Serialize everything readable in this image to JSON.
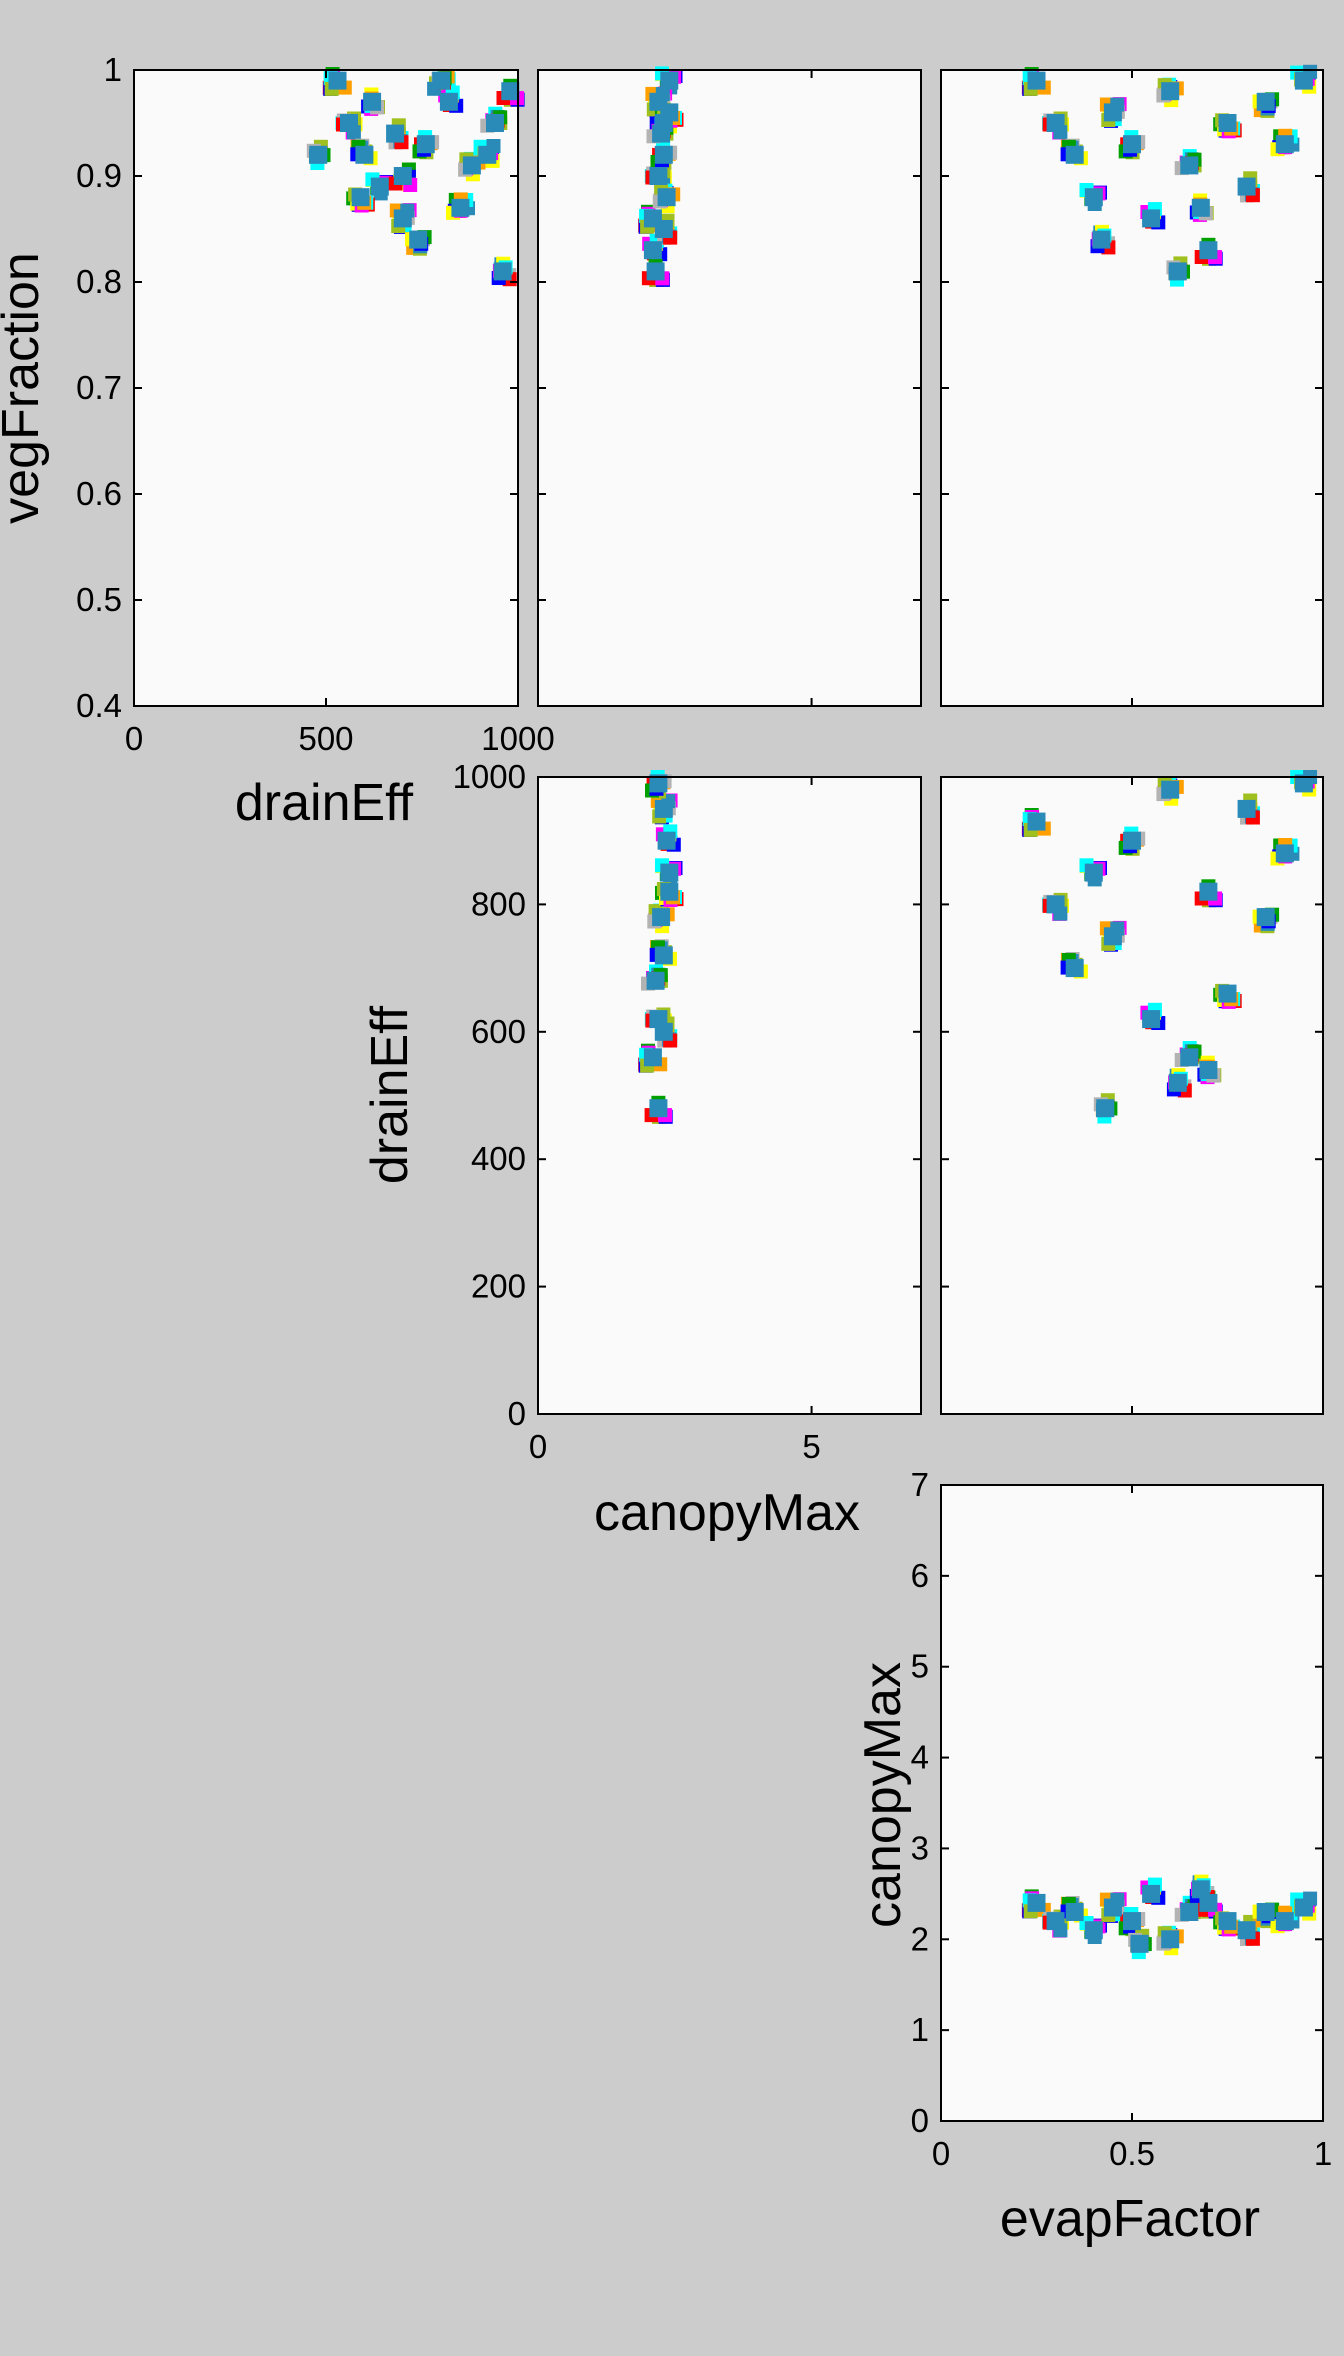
{
  "figure": {
    "background": "#cccccc",
    "axes_background": "#fafafa",
    "marker": "square",
    "palette": [
      "#ff0000",
      "#00a000",
      "#0000ff",
      "#ffff00",
      "#ff00ff",
      "#00ffff",
      "#ffa000",
      "#a0c020",
      "#b3b3b3",
      "#2a8ab8"
    ]
  },
  "chart_data": [
    {
      "id": "drainEff-vs-vegFraction",
      "type": "scatter",
      "xlabel": "drainEff",
      "ylabel": "vegFraction",
      "xlim": [
        0,
        1000
      ],
      "ylim": [
        0.4,
        1
      ],
      "xticks": [
        "0",
        "500",
        "1000"
      ],
      "yticks": [
        "0.4",
        "0.5",
        "0.6",
        "0.7",
        "0.8",
        "0.9",
        "1"
      ],
      "grid": false,
      "points": [
        [
          530,
          0.99
        ],
        [
          560,
          0.95
        ],
        [
          600,
          0.92
        ],
        [
          640,
          0.89
        ],
        [
          700,
          0.86
        ],
        [
          760,
          0.93
        ],
        [
          820,
          0.97
        ],
        [
          880,
          0.91
        ],
        [
          940,
          0.95
        ],
        [
          980,
          0.98
        ],
        [
          590,
          0.88
        ],
        [
          680,
          0.94
        ],
        [
          740,
          0.84
        ],
        [
          850,
          0.87
        ],
        [
          920,
          0.92
        ],
        [
          480,
          0.92
        ],
        [
          960,
          0.81
        ],
        [
          620,
          0.97
        ],
        [
          800,
          0.99
        ],
        [
          700,
          0.9
        ]
      ]
    },
    {
      "id": "canopyMax-vs-vegFraction",
      "type": "scatter",
      "xlabel": "",
      "ylabel": "",
      "xlim": [
        0,
        7
      ],
      "ylim": [
        0.4,
        1
      ],
      "grid": false,
      "points": [
        [
          2.1,
          0.86
        ],
        [
          2.2,
          0.9
        ],
        [
          2.3,
          0.95
        ],
        [
          2.4,
          0.99
        ],
        [
          2.2,
          0.97
        ],
        [
          2.3,
          0.92
        ],
        [
          2.1,
          0.83
        ],
        [
          2.35,
          0.88
        ],
        [
          2.25,
          0.94
        ],
        [
          2.15,
          0.81
        ],
        [
          2.4,
          0.96
        ],
        [
          2.3,
          0.85
        ]
      ]
    },
    {
      "id": "evapFactor-vs-vegFraction",
      "type": "scatter",
      "xlabel": "",
      "ylabel": "",
      "xlim": [
        0,
        1
      ],
      "ylim": [
        0.4,
        1
      ],
      "grid": false,
      "points": [
        [
          0.25,
          0.99
        ],
        [
          0.3,
          0.95
        ],
        [
          0.35,
          0.92
        ],
        [
          0.4,
          0.88
        ],
        [
          0.45,
          0.96
        ],
        [
          0.5,
          0.93
        ],
        [
          0.55,
          0.86
        ],
        [
          0.6,
          0.98
        ],
        [
          0.65,
          0.91
        ],
        [
          0.7,
          0.83
        ],
        [
          0.75,
          0.95
        ],
        [
          0.8,
          0.89
        ],
        [
          0.85,
          0.97
        ],
        [
          0.9,
          0.93
        ],
        [
          0.95,
          0.99
        ],
        [
          0.62,
          0.81
        ],
        [
          0.42,
          0.84
        ],
        [
          0.68,
          0.87
        ]
      ]
    },
    {
      "id": "canopyMax-vs-drainEff",
      "type": "scatter",
      "xlabel": "canopyMax",
      "ylabel": "drainEff",
      "xlim": [
        0,
        7
      ],
      "ylim": [
        0,
        1000
      ],
      "xticks": [
        "0",
        "5"
      ],
      "yticks": [
        "0",
        "200",
        "400",
        "600",
        "800",
        "1000"
      ],
      "grid": false,
      "points": [
        [
          2.1,
          560
        ],
        [
          2.2,
          620
        ],
        [
          2.3,
          720
        ],
        [
          2.4,
          850
        ],
        [
          2.3,
          950
        ],
        [
          2.2,
          990
        ],
        [
          2.35,
          900
        ],
        [
          2.25,
          780
        ],
        [
          2.15,
          680
        ],
        [
          2.2,
          480
        ],
        [
          2.4,
          820
        ],
        [
          2.3,
          600
        ]
      ]
    },
    {
      "id": "evapFactor-vs-drainEff",
      "type": "scatter",
      "xlabel": "",
      "ylabel": "",
      "xlim": [
        0,
        1
      ],
      "ylim": [
        0,
        1000
      ],
      "grid": false,
      "points": [
        [
          0.25,
          930
        ],
        [
          0.3,
          800
        ],
        [
          0.35,
          700
        ],
        [
          0.4,
          850
        ],
        [
          0.45,
          750
        ],
        [
          0.5,
          900
        ],
        [
          0.55,
          620
        ],
        [
          0.6,
          980
        ],
        [
          0.65,
          560
        ],
        [
          0.7,
          820
        ],
        [
          0.75,
          660
        ],
        [
          0.8,
          950
        ],
        [
          0.85,
          780
        ],
        [
          0.9,
          880
        ],
        [
          0.95,
          990
        ],
        [
          0.43,
          480
        ],
        [
          0.62,
          520
        ],
        [
          0.7,
          540
        ]
      ]
    },
    {
      "id": "evapFactor-vs-canopyMax",
      "type": "scatter",
      "xlabel": "evapFactor",
      "ylabel": "canopyMax",
      "xlim": [
        0,
        1
      ],
      "ylim": [
        0,
        7
      ],
      "xticks": [
        "0",
        "0.5",
        "1"
      ],
      "yticks": [
        "0",
        "1",
        "2",
        "3",
        "4",
        "5",
        "6",
        "7"
      ],
      "grid": false,
      "points": [
        [
          0.25,
          2.4
        ],
        [
          0.3,
          2.2
        ],
        [
          0.35,
          2.3
        ],
        [
          0.4,
          2.1
        ],
        [
          0.45,
          2.35
        ],
        [
          0.5,
          2.2
        ],
        [
          0.55,
          2.5
        ],
        [
          0.6,
          2.0
        ],
        [
          0.65,
          2.3
        ],
        [
          0.7,
          2.4
        ],
        [
          0.75,
          2.2
        ],
        [
          0.8,
          2.1
        ],
        [
          0.85,
          2.3
        ],
        [
          0.9,
          2.2
        ],
        [
          0.95,
          2.35
        ],
        [
          0.52,
          1.95
        ],
        [
          0.68,
          2.55
        ]
      ]
    }
  ]
}
